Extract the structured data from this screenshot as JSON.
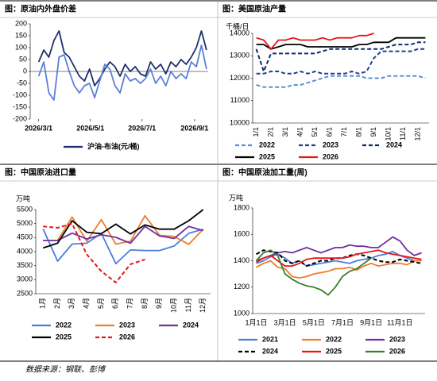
{
  "chart_data": [
    {
      "type": "line",
      "title": "图：原油内外盘价差",
      "xlim": [
        -10,
        200
      ],
      "xticks": [
        {
          "value": 0,
          "label": "2026/3/1"
        },
        {
          "value": 61,
          "label": "2026/5/1"
        },
        {
          "value": 122,
          "label": "2026/7/1"
        },
        {
          "value": 184,
          "label": "2026/9/1"
        }
      ],
      "ylim": [
        -200,
        200
      ],
      "yticks": [
        -200,
        -150,
        -100,
        -50,
        0,
        50,
        100,
        150,
        200
      ],
      "x": [
        0,
        6,
        12,
        18,
        24,
        30,
        36,
        42,
        48,
        54,
        60,
        66,
        72,
        78,
        84,
        90,
        96,
        102,
        108,
        114,
        120,
        126,
        132,
        138,
        144,
        150,
        156,
        162,
        168,
        174,
        180,
        186,
        192,
        198
      ],
      "series": [
        {
          "name": "沪油-布油(元/桶)",
          "color": "#1f2f6b",
          "values": [
            40,
            90,
            60,
            130,
            170,
            80,
            60,
            20,
            -20,
            -40,
            10,
            -60,
            -30,
            10,
            40,
            20,
            -20,
            30,
            0,
            20,
            -10,
            -20,
            40,
            10,
            30,
            -10,
            40,
            20,
            50,
            30,
            60,
            100,
            170,
            90
          ]
        },
        {
          "color": "#5b7fd6",
          "values": [
            -20,
            40,
            -90,
            -120,
            60,
            70,
            0,
            -60,
            -90,
            -60,
            -50,
            -110,
            -40,
            30,
            10,
            -60,
            -90,
            -10,
            -40,
            -30,
            -50,
            -30,
            10,
            -50,
            -20,
            -60,
            0,
            -30,
            -10,
            -30,
            40,
            20,
            110,
            10
          ]
        }
      ]
    },
    {
      "type": "line",
      "title": "图：美国原油产量",
      "y_label": "千桶/日",
      "categories": [
        "1/1",
        null,
        "2/1",
        null,
        "3/1",
        null,
        "4/1",
        null,
        "5/1",
        null,
        "6/1",
        null,
        "7/1",
        null,
        "8/1",
        null,
        "9/1",
        null,
        "10/1",
        null,
        "11/1",
        null,
        "12/1",
        null
      ],
      "ylim": [
        10000,
        14000
      ],
      "yticks": [
        10000,
        11000,
        12000,
        13000,
        14000
      ],
      "series": [
        {
          "name": "2022",
          "color": "#5b8fd6",
          "style": "dashed",
          "values": [
            11700,
            11600,
            11600,
            11600,
            11600,
            11700,
            11700,
            11800,
            11900,
            12000,
            12100,
            12100,
            12100,
            12100,
            12100,
            12000,
            12000,
            12000,
            12100,
            12100,
            12100,
            12100,
            12100,
            12000
          ]
        },
        {
          "name": "2023",
          "color": "#1f3f8f",
          "style": "dashed",
          "values": [
            12200,
            12200,
            12300,
            12300,
            12200,
            12200,
            12300,
            12200,
            12300,
            12200,
            12200,
            12200,
            12200,
            12300,
            12200,
            12300,
            12900,
            13200,
            13200,
            13200,
            13200,
            13200,
            13300,
            13300
          ]
        },
        {
          "name": "2024",
          "color": "#0f2a6b",
          "style": "dashed",
          "values": [
            13300,
            12300,
            13100,
            13100,
            13100,
            13100,
            13100,
            13100,
            13100,
            13200,
            13300,
            13300,
            13300,
            13300,
            13300,
            13300,
            13300,
            13300,
            13400,
            13500,
            13500,
            13500,
            13600,
            13600
          ]
        },
        {
          "name": "2025",
          "color": "#000000",
          "values": [
            13500,
            13500,
            13300,
            13400,
            13500,
            13500,
            13500,
            13400,
            13400,
            13400,
            13400,
            13400,
            13400,
            13400,
            13500,
            13500,
            13600,
            13600,
            13600,
            13800,
            13800,
            13800,
            13800,
            13800
          ]
        },
        {
          "name": "2026",
          "color": "#e8141b",
          "values": [
            13800,
            13700,
            13300,
            13700,
            13700,
            13800,
            13700,
            13700,
            13700,
            13800,
            13700,
            13800,
            13800,
            13800,
            13900,
            13900,
            14000,
            null,
            null,
            null,
            null,
            null,
            null,
            null
          ]
        }
      ]
    },
    {
      "type": "line",
      "title": "图：中国原油进口量",
      "y_label": "万吨",
      "categories": [
        "1月",
        "2月",
        "3月",
        "4月",
        "5月",
        "6月",
        "7月",
        "8月",
        "9月",
        "10月",
        "11月",
        "12月"
      ],
      "ylim": [
        2500,
        5500
      ],
      "yticks": [
        2500,
        3000,
        3500,
        4000,
        4500,
        5000,
        5500
      ],
      "series": [
        {
          "name": "2022",
          "color": "#4a7fd8",
          "values": [
            4810,
            3660,
            4270,
            4300,
            4650,
            3570,
            4060,
            4040,
            4040,
            4200,
            4650,
            4800
          ]
        },
        {
          "name": "2023",
          "color": "#ed7d31",
          "values": [
            4400,
            4400,
            5230,
            4370,
            5140,
            4270,
            4370,
            5280,
            4580,
            4540,
            4260,
            4800
          ]
        },
        {
          "name": "2024",
          "color": "#7030a0",
          "values": [
            4400,
            4400,
            4660,
            4450,
            4600,
            4510,
            4300,
            4900,
            4560,
            4470,
            4900,
            4750
          ]
        },
        {
          "name": "2025",
          "color": "#000000",
          "values": [
            4130,
            4300,
            5100,
            4690,
            4640,
            4980,
            4630,
            4950,
            4800,
            4800,
            5100,
            5500
          ]
        },
        {
          "name": "2026",
          "color": "#e8141b",
          "style": "dashed",
          "values": [
            4900,
            4850,
            5000,
            3900,
            3300,
            2900,
            3550,
            3720,
            null,
            null,
            null,
            null
          ]
        }
      ]
    },
    {
      "type": "line",
      "title": "图：中国原油加工量(周)",
      "y_label": "万吨",
      "categories": [
        "1月1日",
        null,
        null,
        null,
        "3月1日",
        null,
        null,
        null,
        "5月1日",
        null,
        null,
        null,
        "7月1日",
        null,
        null,
        null,
        "9月1日",
        null,
        null,
        null,
        "11月1日",
        null,
        null,
        null
      ],
      "ylim": [
        1000,
        1800
      ],
      "yticks": [
        1000,
        1200,
        1400,
        1600,
        1800
      ],
      "series": [
        {
          "name": "2021",
          "color": "#4a7fd8",
          "values": [
            1380,
            1400,
            1430,
            1450,
            1420,
            1380,
            1400,
            1360,
            1370,
            1380,
            1390,
            1400,
            1390,
            1380,
            1400,
            1410,
            1420,
            1440,
            1450,
            1470,
            1440,
            1420,
            1400,
            1400
          ]
        },
        {
          "name": "2022",
          "color": "#ed7d31",
          "values": [
            1350,
            1380,
            1400,
            1350,
            1340,
            1280,
            1270,
            1280,
            1300,
            1310,
            1320,
            1340,
            1340,
            1350,
            1330,
            1360,
            1380,
            1360,
            1370,
            1380,
            1380,
            1370,
            1400,
            1400
          ]
        },
        {
          "name": "2023",
          "color": "#7030a0",
          "values": [
            1400,
            1420,
            1440,
            1460,
            1470,
            1460,
            1480,
            1500,
            1480,
            1460,
            1480,
            1500,
            1500,
            1520,
            1510,
            1510,
            1500,
            1500,
            1540,
            1580,
            1550,
            1480,
            1440,
            1460
          ]
        },
        {
          "name": "2024",
          "color": "#000000",
          "style": "dashed",
          "values": [
            1450,
            1480,
            1470,
            1460,
            1400,
            1380,
            1400,
            1360,
            1380,
            1400,
            1400,
            1420,
            1420,
            1440,
            1450,
            1440,
            1420,
            1400,
            1390,
            1390,
            1410,
            1400,
            1390,
            1380
          ]
        },
        {
          "name": "2025",
          "color": "#e8141b",
          "values": [
            1390,
            1420,
            1440,
            1400,
            1360,
            1360,
            1380,
            1410,
            1420,
            1420,
            1420,
            1420,
            1420,
            1430,
            1450,
            1460,
            1470,
            1480,
            1460,
            1450,
            1440,
            1430,
            1420,
            1410
          ]
        },
        {
          "name": "2026",
          "color": "#3a7d2a",
          "values": [
            1400,
            1460,
            1480,
            1440,
            1300,
            1260,
            1230,
            1210,
            1200,
            1180,
            1140,
            1200,
            1280,
            1320,
            1340,
            1380,
            1420,
            null,
            null,
            null,
            null,
            null,
            null,
            null
          ]
        }
      ]
    }
  ],
  "source": "数据来源：钢联、彭博"
}
